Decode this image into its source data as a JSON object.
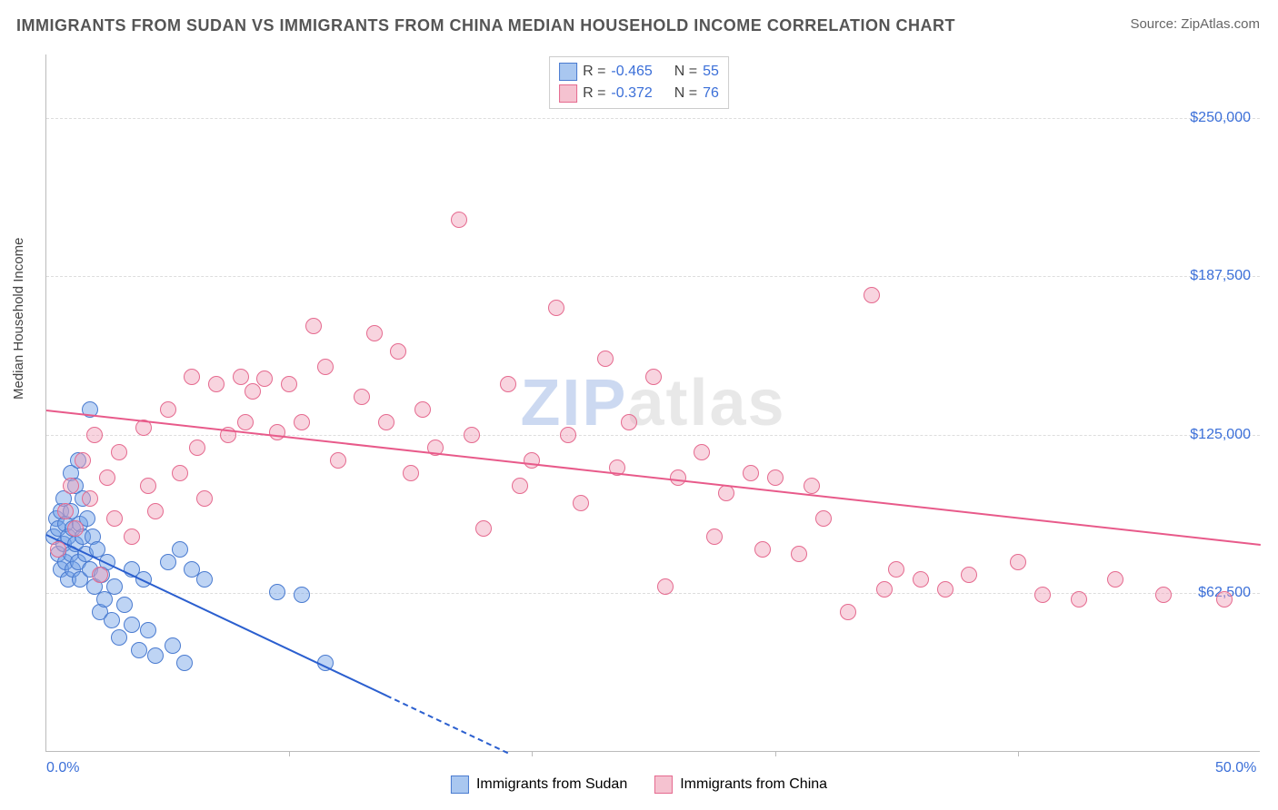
{
  "title": "IMMIGRANTS FROM SUDAN VS IMMIGRANTS FROM CHINA MEDIAN HOUSEHOLD INCOME CORRELATION CHART",
  "source": "Source: ZipAtlas.com",
  "ylabel": "Median Household Income",
  "watermark_z": "ZIP",
  "watermark_rest": "atlas",
  "chart": {
    "type": "scatter",
    "xlim": [
      0,
      50
    ],
    "ylim": [
      0,
      275000
    ],
    "xticks": [
      0,
      50
    ],
    "xtick_labels": [
      "0.0%",
      "50.0%"
    ],
    "xtick_minor": [
      10,
      20,
      30,
      40
    ],
    "yticks": [
      62500,
      125000,
      187500,
      250000
    ],
    "ytick_labels": [
      "$62,500",
      "$125,000",
      "$187,500",
      "$250,000"
    ],
    "grid_color": "#dddddd",
    "axis_color": "#bbbbbb",
    "tick_text_color": "#3b6fd8",
    "legend_top": [
      {
        "swatch_fill": "#a9c7f0",
        "swatch_border": "#4a7bd0",
        "r_label": "R =",
        "r_val": "-0.465",
        "n_label": "N =",
        "n_val": "55"
      },
      {
        "swatch_fill": "#f5c2d0",
        "swatch_border": "#e56a8f",
        "r_label": "R =",
        "r_val": "-0.372",
        "n_label": "N =",
        "n_val": "76"
      }
    ],
    "legend_bottom": [
      {
        "swatch_fill": "#a9c7f0",
        "swatch_border": "#4a7bd0",
        "label": "Immigrants from Sudan"
      },
      {
        "swatch_fill": "#f5c2d0",
        "swatch_border": "#e56a8f",
        "label": "Immigrants from China"
      }
    ],
    "series": [
      {
        "name": "sudan",
        "color_fill": "rgba(110,160,230,0.45)",
        "color_stroke": "#4a7bd0",
        "marker_r": 9,
        "trend": {
          "x1": 0,
          "y1": 86000,
          "x2": 19,
          "y2": 0,
          "color": "#2b5fcf",
          "dash_from_x": 14
        },
        "points": [
          [
            0.3,
            85000
          ],
          [
            0.4,
            92000
          ],
          [
            0.5,
            78000
          ],
          [
            0.5,
            88000
          ],
          [
            0.6,
            95000
          ],
          [
            0.6,
            72000
          ],
          [
            0.7,
            100000
          ],
          [
            0.7,
            82000
          ],
          [
            0.8,
            75000
          ],
          [
            0.8,
            90000
          ],
          [
            0.9,
            68000
          ],
          [
            0.9,
            85000
          ],
          [
            1.0,
            110000
          ],
          [
            1.0,
            95000
          ],
          [
            1.0,
            78000
          ],
          [
            1.1,
            88000
          ],
          [
            1.1,
            72000
          ],
          [
            1.2,
            105000
          ],
          [
            1.2,
            82000
          ],
          [
            1.3,
            115000
          ],
          [
            1.3,
            75000
          ],
          [
            1.4,
            90000
          ],
          [
            1.4,
            68000
          ],
          [
            1.5,
            85000
          ],
          [
            1.5,
            100000
          ],
          [
            1.6,
            78000
          ],
          [
            1.7,
            92000
          ],
          [
            1.8,
            72000
          ],
          [
            1.8,
            135000
          ],
          [
            1.9,
            85000
          ],
          [
            2.0,
            65000
          ],
          [
            2.1,
            80000
          ],
          [
            2.2,
            55000
          ],
          [
            2.3,
            70000
          ],
          [
            2.4,
            60000
          ],
          [
            2.5,
            75000
          ],
          [
            2.7,
            52000
          ],
          [
            2.8,
            65000
          ],
          [
            3.0,
            45000
          ],
          [
            3.2,
            58000
          ],
          [
            3.5,
            72000
          ],
          [
            3.5,
            50000
          ],
          [
            3.8,
            40000
          ],
          [
            4.0,
            68000
          ],
          [
            4.2,
            48000
          ],
          [
            4.5,
            38000
          ],
          [
            5.0,
            75000
          ],
          [
            5.2,
            42000
          ],
          [
            5.5,
            80000
          ],
          [
            5.7,
            35000
          ],
          [
            6.0,
            72000
          ],
          [
            6.5,
            68000
          ],
          [
            9.5,
            63000
          ],
          [
            10.5,
            62000
          ],
          [
            11.5,
            35000
          ]
        ]
      },
      {
        "name": "china",
        "color_fill": "rgba(240,160,185,0.45)",
        "color_stroke": "#e56a8f",
        "marker_r": 9,
        "trend": {
          "x1": 0,
          "y1": 135000,
          "x2": 50,
          "y2": 82000,
          "color": "#e85a8a",
          "dash_from_x": null
        },
        "points": [
          [
            0.5,
            80000
          ],
          [
            0.8,
            95000
          ],
          [
            1.0,
            105000
          ],
          [
            1.2,
            88000
          ],
          [
            1.5,
            115000
          ],
          [
            1.8,
            100000
          ],
          [
            2.0,
            125000
          ],
          [
            2.2,
            70000
          ],
          [
            2.5,
            108000
          ],
          [
            2.8,
            92000
          ],
          [
            3.0,
            118000
          ],
          [
            3.5,
            85000
          ],
          [
            4.0,
            128000
          ],
          [
            4.2,
            105000
          ],
          [
            4.5,
            95000
          ],
          [
            5.0,
            135000
          ],
          [
            5.5,
            110000
          ],
          [
            6.0,
            148000
          ],
          [
            6.2,
            120000
          ],
          [
            6.5,
            100000
          ],
          [
            7.0,
            145000
          ],
          [
            7.5,
            125000
          ],
          [
            8.0,
            148000
          ],
          [
            8.2,
            130000
          ],
          [
            8.5,
            142000
          ],
          [
            9.0,
            147000
          ],
          [
            9.5,
            126000
          ],
          [
            10.0,
            145000
          ],
          [
            10.5,
            130000
          ],
          [
            11.0,
            168000
          ],
          [
            11.5,
            152000
          ],
          [
            12.0,
            115000
          ],
          [
            13.0,
            140000
          ],
          [
            13.5,
            165000
          ],
          [
            14.0,
            130000
          ],
          [
            14.5,
            158000
          ],
          [
            15.0,
            110000
          ],
          [
            15.5,
            135000
          ],
          [
            16.0,
            120000
          ],
          [
            17.0,
            210000
          ],
          [
            17.5,
            125000
          ],
          [
            18.0,
            88000
          ],
          [
            19.0,
            145000
          ],
          [
            19.5,
            105000
          ],
          [
            20.0,
            115000
          ],
          [
            21.0,
            175000
          ],
          [
            21.5,
            125000
          ],
          [
            22.0,
            98000
          ],
          [
            23.0,
            155000
          ],
          [
            23.5,
            112000
          ],
          [
            24.0,
            130000
          ],
          [
            25.0,
            148000
          ],
          [
            25.5,
            65000
          ],
          [
            26.0,
            108000
          ],
          [
            27.0,
            118000
          ],
          [
            27.5,
            85000
          ],
          [
            28.0,
            102000
          ],
          [
            29.0,
            110000
          ],
          [
            29.5,
            80000
          ],
          [
            30.0,
            108000
          ],
          [
            31.0,
            78000
          ],
          [
            31.5,
            105000
          ],
          [
            32.0,
            92000
          ],
          [
            33.0,
            55000
          ],
          [
            34.0,
            180000
          ],
          [
            34.5,
            64000
          ],
          [
            35.0,
            72000
          ],
          [
            36.0,
            68000
          ],
          [
            37.0,
            64000
          ],
          [
            38.0,
            70000
          ],
          [
            40.0,
            75000
          ],
          [
            41.0,
            62000
          ],
          [
            42.5,
            60000
          ],
          [
            44.0,
            68000
          ],
          [
            46.0,
            62000
          ],
          [
            48.5,
            60000
          ]
        ]
      }
    ]
  }
}
